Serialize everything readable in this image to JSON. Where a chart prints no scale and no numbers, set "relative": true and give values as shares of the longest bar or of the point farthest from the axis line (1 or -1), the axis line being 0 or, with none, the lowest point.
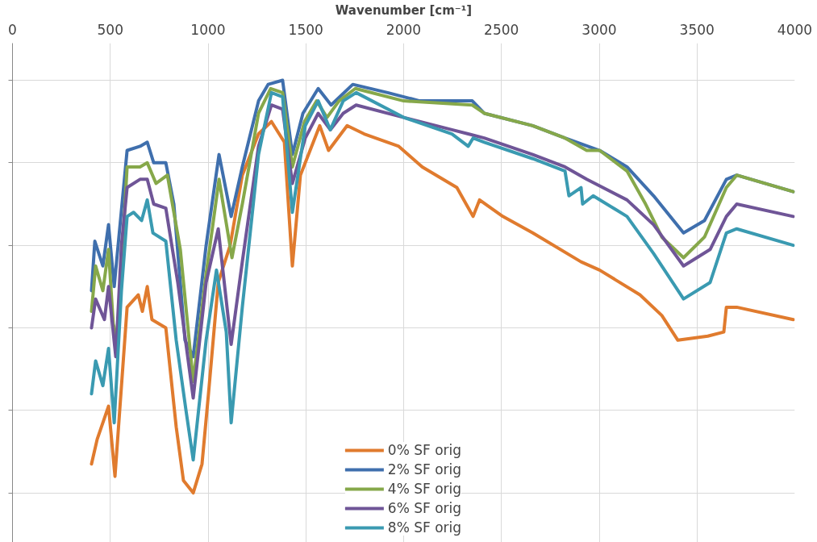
{
  "chart_data": {
    "type": "line",
    "xlabel": "Wavenumber [cm⁻¹]",
    "relative": true,
    "xlim": [
      0,
      4000
    ],
    "xticks": [
      0,
      500,
      1000,
      1500,
      2000,
      2500,
      3000,
      3500,
      4000
    ],
    "grid": true,
    "legend": "bottom",
    "marker": "none",
    "line_style": "solid",
    "series": [
      {
        "name": "0% SF orig",
        "color": "#e07b2e",
        "x": [
          404,
          433,
          491,
          524,
          586,
          643,
          664,
          689,
          713,
          784,
          837,
          874,
          924,
          969,
          1002,
          1052,
          1113,
          1175,
          1258,
          1324,
          1390,
          1431,
          1472,
          1571,
          1616,
          1711,
          1798,
          1975,
          2095,
          2272,
          2355,
          2388,
          2507,
          2660,
          2907,
          3002,
          3208,
          3320,
          3402,
          3555,
          3637,
          3650,
          3703,
          3992
        ],
        "values": [
          0.07,
          0.13,
          0.21,
          0.04,
          0.45,
          0.48,
          0.44,
          0.5,
          0.42,
          0.4,
          0.16,
          0.03,
          0.0,
          0.07,
          0.24,
          0.51,
          0.6,
          0.77,
          0.87,
          0.9,
          0.85,
          0.55,
          0.77,
          0.89,
          0.83,
          0.89,
          0.87,
          0.84,
          0.79,
          0.74,
          0.67,
          0.71,
          0.67,
          0.63,
          0.56,
          0.54,
          0.48,
          0.43,
          0.37,
          0.38,
          0.39,
          0.45,
          0.45,
          0.42
        ]
      },
      {
        "name": "2% SF orig",
        "color": "#3f6fad",
        "x": [
          404,
          421,
          462,
          491,
          520,
          586,
          652,
          689,
          722,
          784,
          825,
          882,
          924,
          990,
          1056,
          1118,
          1175,
          1258,
          1307,
          1381,
          1431,
          1485,
          1563,
          1629,
          1740,
          1918,
          2082,
          2351,
          2412,
          2660,
          2825,
          3002,
          3142,
          3278,
          3431,
          3538,
          3650,
          3703,
          3992
        ],
        "values": [
          0.49,
          0.61,
          0.55,
          0.65,
          0.5,
          0.83,
          0.84,
          0.85,
          0.8,
          0.8,
          0.7,
          0.37,
          0.33,
          0.6,
          0.82,
          0.67,
          0.79,
          0.95,
          0.99,
          1.0,
          0.82,
          0.92,
          0.98,
          0.94,
          0.99,
          0.97,
          0.95,
          0.95,
          0.92,
          0.89,
          0.86,
          0.83,
          0.79,
          0.72,
          0.63,
          0.66,
          0.76,
          0.77,
          0.73
        ]
      },
      {
        "name": "4% SF orig",
        "color": "#86a84a",
        "x": [
          404,
          425,
          462,
          491,
          515,
          536,
          586,
          652,
          689,
          734,
          792,
          858,
          924,
          990,
          1056,
          1122,
          1175,
          1258,
          1320,
          1381,
          1431,
          1493,
          1555,
          1608,
          1670,
          1753,
          2000,
          2351,
          2412,
          2660,
          2825,
          2936,
          3002,
          3142,
          3237,
          3320,
          3431,
          3538,
          3650,
          3703,
          3992
        ],
        "values": [
          0.44,
          0.55,
          0.49,
          0.59,
          0.41,
          0.37,
          0.79,
          0.79,
          0.8,
          0.75,
          0.77,
          0.59,
          0.27,
          0.53,
          0.76,
          0.57,
          0.7,
          0.92,
          0.98,
          0.97,
          0.79,
          0.9,
          0.95,
          0.91,
          0.95,
          0.98,
          0.95,
          0.94,
          0.92,
          0.89,
          0.86,
          0.83,
          0.83,
          0.78,
          0.7,
          0.62,
          0.57,
          0.62,
          0.74,
          0.77,
          0.73
        ]
      },
      {
        "name": "6% SF orig",
        "color": "#6f5597",
        "x": [
          404,
          425,
          470,
          491,
          528,
          557,
          586,
          652,
          689,
          722,
          784,
          845,
          924,
          990,
          1052,
          1118,
          1175,
          1258,
          1324,
          1381,
          1431,
          1497,
          1563,
          1625,
          1691,
          1757,
          2000,
          2247,
          2330,
          2412,
          2660,
          2825,
          2936,
          3142,
          3278,
          3431,
          3567,
          3650,
          3703,
          3992
        ],
        "values": [
          0.4,
          0.47,
          0.42,
          0.5,
          0.33,
          0.6,
          0.74,
          0.76,
          0.76,
          0.7,
          0.69,
          0.51,
          0.23,
          0.51,
          0.64,
          0.36,
          0.56,
          0.84,
          0.94,
          0.93,
          0.75,
          0.86,
          0.92,
          0.88,
          0.92,
          0.94,
          0.91,
          0.88,
          0.87,
          0.86,
          0.82,
          0.79,
          0.76,
          0.71,
          0.65,
          0.55,
          0.59,
          0.67,
          0.7,
          0.67
        ]
      },
      {
        "name": "8% SF orig",
        "color": "#3a9ab1",
        "x": [
          404,
          425,
          462,
          491,
          520,
          557,
          586,
          619,
          660,
          689,
          718,
          784,
          837,
          887,
          924,
          990,
          1043,
          1093,
          1118,
          1175,
          1258,
          1324,
          1381,
          1431,
          1497,
          1563,
          1625,
          1691,
          1757,
          2000,
          2247,
          2330,
          2355,
          2412,
          2660,
          2825,
          2845,
          2907,
          2915,
          2969,
          3142,
          3278,
          3431,
          3567,
          3650,
          3703,
          3992
        ],
        "values": [
          0.24,
          0.32,
          0.26,
          0.35,
          0.17,
          0.49,
          0.67,
          0.68,
          0.66,
          0.71,
          0.63,
          0.61,
          0.37,
          0.2,
          0.08,
          0.37,
          0.54,
          0.39,
          0.17,
          0.45,
          0.82,
          0.97,
          0.96,
          0.68,
          0.89,
          0.95,
          0.88,
          0.95,
          0.97,
          0.91,
          0.87,
          0.84,
          0.86,
          0.85,
          0.81,
          0.78,
          0.72,
          0.74,
          0.7,
          0.72,
          0.67,
          0.58,
          0.47,
          0.51,
          0.63,
          0.64,
          0.6
        ]
      }
    ]
  }
}
